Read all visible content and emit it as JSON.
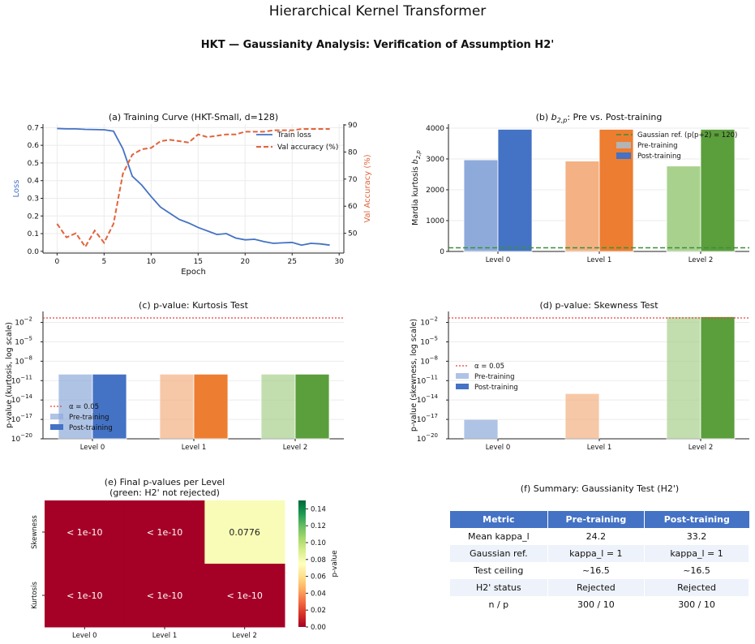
{
  "suptitle": "Hierarchical Kernel Transformer",
  "subtitle": "HKT — Gaussianity Analysis: Verification of Assumption H2'",
  "colors": {
    "train": "#4472c4",
    "val": "#e0643c",
    "level0_pre": "#8eaadb",
    "level0_post": "#4472c4",
    "level1_pre": "#f4b183",
    "level1_post": "#ed7d31",
    "level2_pre": "#a9d18e",
    "level2_post": "#5b9e3c",
    "gauss_ref": "#3a8f3a",
    "alpha": "#e8413c"
  },
  "chart_data": [
    {
      "id": "a",
      "type": "line",
      "title": "(a) Training Curve (HKT-Small, d=128)",
      "xlabel": "Epoch",
      "ylabel": "Loss",
      "ylabel_right": "Val Accuracy (%)",
      "xlim": [
        -1.5,
        30.5
      ],
      "ylim": [
        -0.01,
        0.72
      ],
      "ylim_right": [
        42.7,
        90.3
      ],
      "xticks": [
        "0",
        "5",
        "10",
        "15",
        "20",
        "25",
        "30"
      ],
      "yticks": [
        "0.0",
        "0.1",
        "0.2",
        "0.3",
        "0.4",
        "0.5",
        "0.6",
        "0.7"
      ],
      "yticks_right": [
        "50",
        "60",
        "70",
        "80",
        "90"
      ],
      "legend": "upper right",
      "grid": true,
      "series": [
        {
          "name": "Train loss",
          "axis": "left",
          "style": "solid",
          "color": "#4472c4",
          "x": [
            0,
            1,
            2,
            3,
            4,
            5,
            6,
            7,
            8,
            9,
            10,
            11,
            12,
            13,
            14,
            15,
            16,
            17,
            18,
            19,
            20,
            21,
            22,
            23,
            24,
            25,
            26,
            27,
            28,
            29
          ],
          "values": [
            0.695,
            0.693,
            0.693,
            0.69,
            0.689,
            0.688,
            0.68,
            0.58,
            0.425,
            0.375,
            0.31,
            0.25,
            0.215,
            0.18,
            0.16,
            0.135,
            0.115,
            0.095,
            0.1,
            0.075,
            0.065,
            0.068,
            0.055,
            0.045,
            0.048,
            0.05,
            0.035,
            0.045,
            0.042,
            0.035
          ]
        },
        {
          "name": "Val accuracy (%)",
          "axis": "right",
          "style": "dashed",
          "color": "#e0643c",
          "x": [
            0,
            1,
            2,
            3,
            4,
            5,
            6,
            7,
            8,
            9,
            10,
            11,
            12,
            13,
            14,
            15,
            16,
            17,
            18,
            19,
            20,
            21,
            22,
            23,
            24,
            25,
            26,
            27,
            28,
            29
          ],
          "values": [
            53.5,
            48.5,
            50.0,
            45.0,
            51.0,
            46.5,
            53.5,
            72.0,
            79.0,
            81.0,
            81.5,
            84.0,
            84.5,
            84.0,
            83.5,
            86.5,
            85.5,
            86.0,
            86.5,
            86.5,
            87.5,
            87.5,
            87.5,
            88.0,
            88.0,
            88.0,
            88.5,
            88.5,
            88.5,
            88.5
          ]
        }
      ]
    },
    {
      "id": "b",
      "type": "bar",
      "title_prefix": "(b) ",
      "title_sub": "2,p",
      "title_suffix": ": Pre vs. Post-training",
      "ylabel": "Mardia kurtosis ",
      "ylabel_sub": "2,p",
      "categories": [
        "Level 0",
        "Level 1",
        "Level 2"
      ],
      "ylim": [
        0,
        4130
      ],
      "yticks": [
        "0",
        "1000",
        "2000",
        "3000",
        "4000"
      ],
      "legend": "upper right",
      "reference_line": {
        "label": "Gaussian ref. (p(p+2) = 120)",
        "value": 120
      },
      "series": [
        {
          "name": "Pre-training",
          "values": [
            2970,
            2930,
            2770
          ]
        },
        {
          "name": "Post-training",
          "values": [
            3960,
            3960,
            3960
          ]
        }
      ]
    },
    {
      "id": "c",
      "type": "bar",
      "title": "(c) p-value: Kurtosis Test",
      "ylabel": "p-value (kurtosis, log scale)",
      "yscale": "log",
      "ylim": [
        1e-20,
        0.5
      ],
      "yticks": [
        "10",
        "10",
        "10",
        "10",
        "10",
        "10",
        "10"
      ],
      "yticks_exp": [
        "−20",
        "−17",
        "−14",
        "−11",
        "−8",
        "−5",
        "−2"
      ],
      "categories": [
        "Level 0",
        "Level 1",
        "Level 2"
      ],
      "legend": "lower left",
      "alpha_line": {
        "label": "α = 0.05",
        "value": 0.05
      },
      "series": [
        {
          "name": "Pre-training",
          "values": [
            1e-10,
            1e-10,
            1e-10
          ]
        },
        {
          "name": "Post-training",
          "values": [
            1e-10,
            1e-10,
            1e-10
          ]
        }
      ]
    },
    {
      "id": "d",
      "type": "bar",
      "title": "(d) p-value: Skewness Test",
      "ylabel": "p-value (skewness, log scale)",
      "yscale": "log",
      "ylim": [
        1e-20,
        0.5
      ],
      "yticks": [
        "10",
        "10",
        "10",
        "10",
        "10",
        "10",
        "10"
      ],
      "yticks_exp": [
        "−20",
        "−17",
        "−14",
        "−11",
        "−8",
        "−5",
        "−2"
      ],
      "categories": [
        "Level 0",
        "Level 1",
        "Level 2"
      ],
      "legend": "center left",
      "alpha_line": {
        "label": "α = 0.05",
        "value": 0.05
      },
      "series": [
        {
          "name": "Pre-training",
          "values": [
            1e-17,
            1e-13,
            0.0776
          ]
        },
        {
          "name": "Post-training",
          "values": [
            1e-20,
            1e-20,
            0.0776
          ]
        }
      ]
    },
    {
      "id": "e",
      "type": "heatmap",
      "title_line1": "(e) Final p-values per Level",
      "title_line2": "(green: H2' not rejected)",
      "rows": [
        "Skewness",
        "Kurtosis"
      ],
      "columns": [
        "Level 0",
        "Level 1",
        "Level 2"
      ],
      "values": [
        [
          0,
          0,
          0.0776
        ],
        [
          0,
          0,
          0
        ]
      ],
      "labels": [
        [
          "< 1e-10",
          "< 1e-10",
          "0.0776"
        ],
        [
          "< 1e-10",
          "< 1e-10",
          "< 1e-10"
        ]
      ],
      "colorbar_label": "p-value",
      "colorbar_range": [
        0,
        0.15
      ],
      "colorbar_ticks": [
        "0.00",
        "0.02",
        "0.04",
        "0.06",
        "0.08",
        "0.10",
        "0.12",
        "0.14"
      ],
      "colormap": "RdYlGn"
    },
    {
      "id": "f",
      "type": "table",
      "title": "(f) Summary: Gaussianity Test (H2')",
      "columns": [
        "Metric",
        "Pre-training",
        "Post-training"
      ],
      "rows": [
        [
          "Mean kappa_l",
          "24.2",
          "33.2"
        ],
        [
          "Gaussian ref.",
          "kappa_l = 1",
          "kappa_l = 1"
        ],
        [
          "Test ceiling",
          "~16.5",
          "~16.5"
        ],
        [
          "H2' status",
          "Rejected",
          "Rejected"
        ],
        [
          "n / p",
          "300 / 10",
          "300 / 10"
        ]
      ]
    }
  ]
}
